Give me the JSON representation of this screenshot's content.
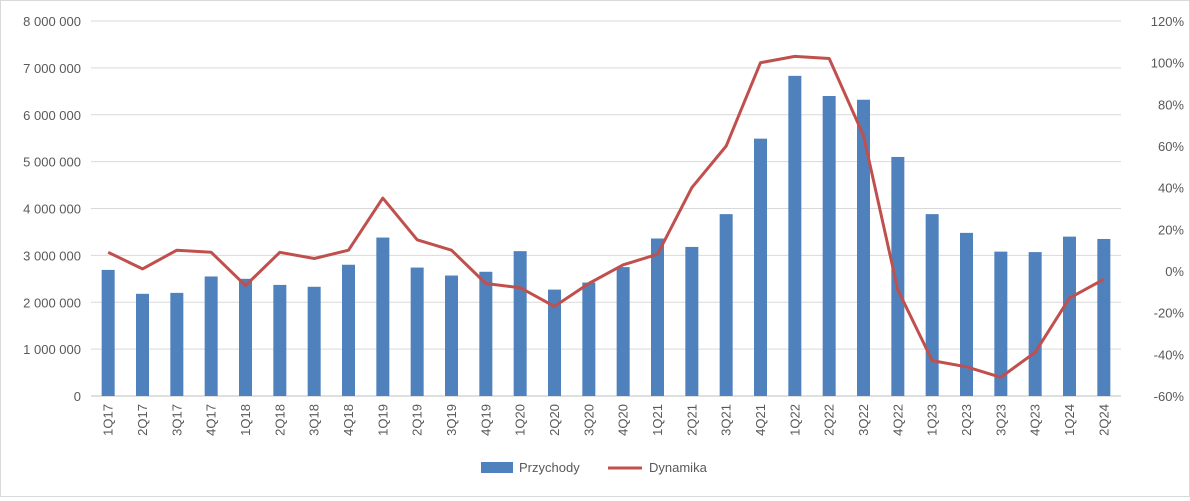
{
  "chart_data": {
    "type": "bar",
    "categories": [
      "1Q17",
      "2Q17",
      "3Q17",
      "4Q17",
      "1Q18",
      "2Q18",
      "3Q18",
      "4Q18",
      "1Q19",
      "2Q19",
      "3Q19",
      "4Q19",
      "1Q20",
      "2Q20",
      "3Q20",
      "4Q20",
      "1Q21",
      "2Q21",
      "3Q21",
      "4Q21",
      "1Q22",
      "2Q22",
      "3Q22",
      "4Q22",
      "1Q23",
      "2Q23",
      "3Q23",
      "4Q23",
      "1Q24",
      "2Q24"
    ],
    "series": [
      {
        "name": "Przychody",
        "type": "bar",
        "axis": "left",
        "color": "#4f81bd",
        "values": [
          2690000,
          2180000,
          2200000,
          2550000,
          2500000,
          2370000,
          2330000,
          2800000,
          3380000,
          2740000,
          2570000,
          2650000,
          3090000,
          2270000,
          2420000,
          2750000,
          3360000,
          3180000,
          3880000,
          5490000,
          6830000,
          6400000,
          6320000,
          5100000,
          3880000,
          3480000,
          3080000,
          3070000,
          3400000,
          3350000
        ]
      },
      {
        "name": "Dynamika",
        "type": "line",
        "axis": "right",
        "color": "#c0504d",
        "values": [
          9,
          1,
          10,
          9,
          -7,
          9,
          6,
          10,
          35,
          15,
          10,
          -6,
          -8,
          -17,
          -6,
          3,
          8,
          40,
          60,
          100,
          103,
          102,
          65,
          -9,
          -43,
          -46,
          -51,
          -39,
          -13,
          -4
        ]
      }
    ],
    "y_left": {
      "ylim": [
        0,
        8000000
      ],
      "ticks": [
        "0",
        "1 000 000",
        "2 000 000",
        "3 000 000",
        "4 000 000",
        "5 000 000",
        "6 000 000",
        "7 000 000",
        "8 000 000"
      ]
    },
    "y_right": {
      "ylim": [
        -60,
        120
      ],
      "ticks": [
        "-60%",
        "-40%",
        "-20%",
        "0%",
        "20%",
        "40%",
        "60%",
        "80%",
        "100%",
        "120%"
      ]
    },
    "grid": true,
    "legend": "bottom-center"
  }
}
